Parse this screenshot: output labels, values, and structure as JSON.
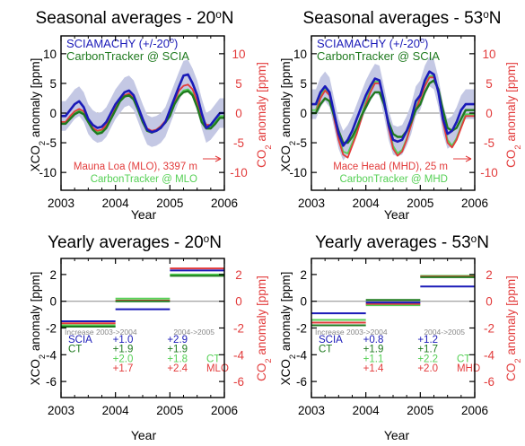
{
  "colors": {
    "scia": "#1a1ab8",
    "ct_scia": "#1f7a1f",
    "station": "#e23b3b",
    "ct_station": "#55d055",
    "band": "#c4c8e4",
    "axis": "#000000",
    "increase_header": "#888888",
    "zero_line": "#8a8a8a"
  },
  "chart_data": [
    {
      "type": "line",
      "title": "Seasonal averages - 20°N",
      "xlabel": "Year",
      "ylabel_left": "XCO2 anomaly [ppm]",
      "ylabel_right": "CO2 anomaly [ppm]",
      "xlim": [
        2003.0,
        2006.0
      ],
      "ylim": [
        -13,
        13
      ],
      "x_ticks": [
        "2003",
        "2004",
        "2005",
        "2006"
      ],
      "y_ticks_left": [
        "-10",
        "-5",
        "0",
        "5",
        "10"
      ],
      "y_ticks_right": [
        "-10",
        "-5",
        "0",
        "5",
        "10"
      ],
      "legend_top": [
        "SCIAMACHY (+/-20°)",
        "CarbonTracker @ SCIA"
      ],
      "legend_bottom": [
        "Mauna Loa (MLO), 3397 m",
        "CarbonTracker @ MLO"
      ],
      "x": [
        2003.0,
        2003.083,
        2003.167,
        2003.25,
        2003.333,
        2003.417,
        2003.5,
        2003.583,
        2003.667,
        2003.75,
        2003.833,
        2003.917,
        2004.0,
        2004.083,
        2004.167,
        2004.25,
        2004.333,
        2004.417,
        2004.5,
        2004.583,
        2004.667,
        2004.75,
        2004.833,
        2004.917,
        2005.0,
        2005.083,
        2005.167,
        2005.25,
        2005.333,
        2005.417,
        2005.5,
        2005.583,
        2005.667,
        2005.75,
        2005.833,
        2005.917,
        2006.0
      ],
      "series": [
        {
          "name": "SCIAMACHY (+/-20°)",
          "role": "scia",
          "values": [
            -0.5,
            -0.5,
            0.5,
            1.5,
            2.0,
            1.0,
            -1.0,
            -2.0,
            -2.5,
            -2.3,
            -1.5,
            0.0,
            1.5,
            2.5,
            3.5,
            3.8,
            3.0,
            1.0,
            -1.0,
            -2.8,
            -3.2,
            -3.0,
            -2.5,
            -1.5,
            0.5,
            2.5,
            4.5,
            6.3,
            6.5,
            5.0,
            3.0,
            0.0,
            -2.5,
            -2.0,
            -1.0,
            0.0,
            0.0
          ]
        },
        {
          "name": "CarbonTracker @ SCIA",
          "role": "ct_scia",
          "values": [
            -1.8,
            -1.8,
            -1.0,
            -0.2,
            0.2,
            -0.2,
            -1.5,
            -2.8,
            -3.5,
            -3.3,
            -2.5,
            -1.0,
            0.5,
            2.0,
            2.8,
            3.0,
            2.3,
            0.5,
            -1.5,
            -3.0,
            -3.3,
            -3.0,
            -2.4,
            -1.6,
            -0.5,
            1.5,
            2.8,
            3.5,
            3.7,
            3.0,
            1.0,
            -1.5,
            -2.6,
            -2.6,
            -1.8,
            -0.8,
            -0.8
          ]
        },
        {
          "name": "Mauna Loa (MLO), 3397 m",
          "role": "station",
          "values": [
            -1.5,
            -1.5,
            -0.5,
            0.3,
            0.7,
            0.3,
            -1.0,
            -2.5,
            -3.0,
            -2.8,
            -2.0,
            -0.8,
            0.8,
            2.2,
            3.0,
            3.3,
            2.5,
            0.8,
            -1.2,
            -2.6,
            -3.0,
            -2.8,
            -2.2,
            -1.3,
            0.0,
            2.0,
            3.8,
            4.6,
            4.8,
            4.0,
            2.0,
            -0.5,
            -2.0,
            -2.0,
            -1.0,
            0.0,
            0.0
          ]
        },
        {
          "name": "CarbonTracker @ MLO",
          "role": "ct_station",
          "values": [
            -1.7,
            -1.7,
            -0.8,
            0.0,
            0.4,
            0.0,
            -1.3,
            -2.6,
            -3.2,
            -3.0,
            -2.2,
            -0.9,
            0.6,
            2.0,
            2.7,
            3.0,
            2.3,
            0.6,
            -1.4,
            -2.8,
            -3.1,
            -2.9,
            -2.3,
            -1.5,
            -0.3,
            1.6,
            3.0,
            3.8,
            4.0,
            3.3,
            1.4,
            -1.0,
            -2.4,
            -2.4,
            -1.5,
            -0.5,
            -0.5
          ]
        }
      ],
      "band_halfwidth": 2.5
    },
    {
      "type": "line",
      "title": "Seasonal averages - 53°N",
      "xlabel": "Year",
      "ylabel_left": "XCO2 anomaly [ppm]",
      "ylabel_right": "CO2 anomaly [ppm]",
      "xlim": [
        2003.0,
        2006.0
      ],
      "ylim": [
        -13,
        13
      ],
      "x_ticks": [
        "2003",
        "2004",
        "2005",
        "2006"
      ],
      "y_ticks_left": [
        "-10",
        "-5",
        "0",
        "5",
        "10"
      ],
      "y_ticks_right": [
        "-10",
        "-5",
        "0",
        "5",
        "10"
      ],
      "legend_top": [
        "SCIAMACHY (+/-20°)",
        "CarbonTracker @ SCIA"
      ],
      "legend_bottom": [
        "Mace Head (MHD), 25 m",
        "CarbonTracker @ MHD"
      ],
      "x": [
        2003.0,
        2003.083,
        2003.167,
        2003.25,
        2003.333,
        2003.417,
        2003.5,
        2003.583,
        2003.667,
        2003.75,
        2003.833,
        2003.917,
        2004.0,
        2004.083,
        2004.167,
        2004.25,
        2004.333,
        2004.417,
        2004.5,
        2004.583,
        2004.667,
        2004.75,
        2004.833,
        2004.917,
        2005.0,
        2005.083,
        2005.167,
        2005.25,
        2005.333,
        2005.417,
        2005.5,
        2005.583,
        2005.667,
        2005.75,
        2005.833,
        2005.917,
        2006.0
      ],
      "series": [
        {
          "name": "SCIAMACHY (+/-20°)",
          "role": "scia",
          "values": [
            1.5,
            1.5,
            3.5,
            4.5,
            3.5,
            0.0,
            -3.5,
            -5.5,
            -4.5,
            -3.0,
            -1.0,
            1.0,
            3.0,
            4.5,
            5.8,
            5.5,
            2.0,
            -2.0,
            -4.5,
            -4.8,
            -4.5,
            -3.0,
            -1.0,
            2.0,
            3.0,
            5.5,
            7.0,
            6.5,
            3.5,
            -1.0,
            -3.5,
            -3.0,
            -1.5,
            0.5,
            1.5,
            1.5,
            1.5
          ]
        },
        {
          "name": "CarbonTracker @ SCIA",
          "role": "ct_scia",
          "values": [
            0.0,
            0.0,
            1.5,
            2.5,
            2.0,
            -0.5,
            -3.0,
            -5.0,
            -5.0,
            -4.0,
            -2.5,
            -0.5,
            1.0,
            2.5,
            3.5,
            3.5,
            1.5,
            -1.5,
            -3.5,
            -4.0,
            -4.0,
            -3.0,
            -1.5,
            0.5,
            1.5,
            3.5,
            5.0,
            5.5,
            4.0,
            0.5,
            -2.5,
            -3.0,
            -2.5,
            -1.0,
            0.5,
            0.5,
            0.5
          ]
        },
        {
          "name": "Mace Head (MHD), 25 m",
          "role": "station",
          "values": [
            0.0,
            0.0,
            2.5,
            3.8,
            3.0,
            -1.0,
            -4.5,
            -7.0,
            -7.5,
            -5.5,
            -3.5,
            -1.0,
            1.5,
            3.5,
            5.0,
            5.0,
            2.0,
            -2.5,
            -6.0,
            -7.2,
            -6.5,
            -4.5,
            -2.0,
            0.5,
            2.5,
            4.5,
            6.0,
            6.0,
            3.5,
            -1.5,
            -5.0,
            -5.8,
            -4.5,
            -2.5,
            -0.5,
            -0.5,
            -0.5
          ]
        },
        {
          "name": "CarbonTracker @ MHD",
          "role": "ct_station",
          "values": [
            0.5,
            0.5,
            3.0,
            4.0,
            3.0,
            -0.5,
            -4.0,
            -6.5,
            -6.8,
            -5.0,
            -3.0,
            -0.5,
            2.0,
            4.0,
            5.3,
            5.3,
            2.5,
            -2.0,
            -5.5,
            -6.8,
            -6.2,
            -4.3,
            -1.8,
            0.8,
            2.8,
            4.8,
            6.2,
            6.3,
            4.0,
            -1.0,
            -4.5,
            -5.5,
            -4.2,
            -2.2,
            -0.2,
            -0.2,
            -0.2
          ]
        }
      ],
      "band_halfwidth": 2.5
    },
    {
      "type": "step",
      "title": "Yearly averages - 20°N",
      "xlabel": "Year",
      "ylabel_left": "XCO2 anomaly [ppm]",
      "ylabel_right": "CO2 anomaly [ppm]",
      "xlim": [
        2003.0,
        2006.0
      ],
      "ylim": [
        -7.2,
        3.2
      ],
      "x_ticks": [
        "2003",
        "2004",
        "2005",
        "2006"
      ],
      "y_ticks_left": [
        "-6",
        "-4",
        "-2",
        "0",
        "2"
      ],
      "y_ticks_right": [
        "-6",
        "-4",
        "-2",
        "0",
        "2"
      ],
      "series": [
        {
          "name": "SCIA",
          "role": "scia",
          "values": [
            -1.5,
            -0.6,
            2.3
          ]
        },
        {
          "name": "CT",
          "role": "ct_scia",
          "values": [
            -1.9,
            0.0,
            1.9
          ]
        },
        {
          "name": "CT",
          "role": "ct_station",
          "values": [
            -1.8,
            0.2,
            2.0
          ]
        },
        {
          "name": "MLO",
          "role": "station",
          "values": [
            -1.65,
            0.05,
            2.45
          ]
        }
      ],
      "increase_table": {
        "header_1": "Increase 2003->2004",
        "header_2": "2004->2005",
        "rows": [
          {
            "label": "SCIA",
            "role": "scia",
            "v1": "+1.0",
            "v2": "+2.9",
            "suffix": ""
          },
          {
            "label": "CT",
            "role": "ct_scia",
            "v1": "+1.9",
            "v2": "+1.9",
            "suffix": ""
          },
          {
            "label": "",
            "role": "ct_station",
            "v1": "+2.0",
            "v2": "+1.8",
            "suffix": "CT"
          },
          {
            "label": "",
            "role": "station",
            "v1": "+1.7",
            "v2": "+2.4",
            "suffix": "MLO"
          }
        ]
      }
    },
    {
      "type": "step",
      "title": "Yearly averages - 53°N",
      "xlabel": "Year",
      "ylabel_left": "XCO2 anomaly [ppm]",
      "ylabel_right": "CO2 anomaly [ppm]",
      "xlim": [
        2003.0,
        2006.0
      ],
      "ylim": [
        -7.2,
        3.2
      ],
      "x_ticks": [
        "2003",
        "2004",
        "2005",
        "2006"
      ],
      "y_ticks_left": [
        "-6",
        "-4",
        "-2",
        "0",
        "2"
      ],
      "y_ticks_right": [
        "-6",
        "-4",
        "-2",
        "0",
        "2"
      ],
      "series": [
        {
          "name": "SCIA",
          "role": "scia",
          "values": [
            -0.9,
            -0.1,
            1.1
          ]
        },
        {
          "name": "CT",
          "role": "ct_scia",
          "values": [
            -1.8,
            0.1,
            1.8
          ]
        },
        {
          "name": "CT",
          "role": "ct_station",
          "values": [
            -1.4,
            -0.3,
            1.9
          ]
        },
        {
          "name": "MHD",
          "role": "station",
          "values": [
            -1.6,
            -0.2,
            1.85
          ]
        }
      ],
      "increase_table": {
        "header_1": "Increase 2003->2004",
        "header_2": "2004->2005",
        "rows": [
          {
            "label": "SCIA",
            "role": "scia",
            "v1": "+0.8",
            "v2": "+1.2",
            "suffix": ""
          },
          {
            "label": "CT",
            "role": "ct_scia",
            "v1": "+1.9",
            "v2": "+1.7",
            "suffix": ""
          },
          {
            "label": "",
            "role": "ct_station",
            "v1": "+1.1",
            "v2": "+2.2",
            "suffix": "CT"
          },
          {
            "label": "",
            "role": "station",
            "v1": "+1.4",
            "v2": "+2.0",
            "suffix": "MHD"
          }
        ]
      }
    }
  ]
}
